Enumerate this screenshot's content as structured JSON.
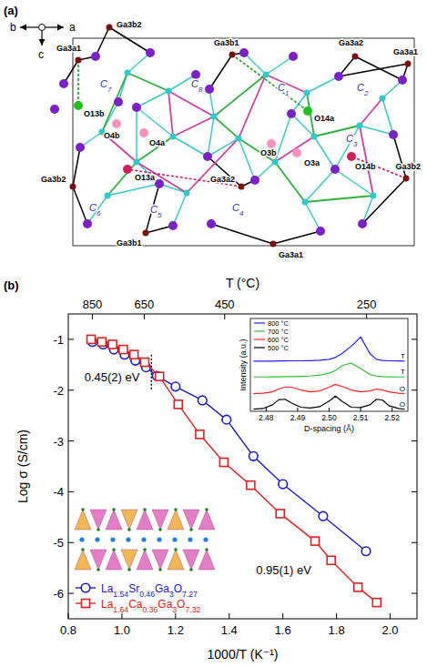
{
  "diagram": {
    "label": "(a)",
    "axes": {
      "b": "b",
      "a": "a",
      "c": "c"
    },
    "ga_atoms": [
      "Ga3b2",
      "Ga3a1",
      "Ga3b1",
      "Ga3a2",
      "Ga3a1",
      "Ga3b2",
      "Ga3b1",
      "Ga3a2",
      "Ga3a1",
      "Ga3b2"
    ],
    "cages": [
      "C7",
      "C8",
      "C1",
      "C2",
      "C3",
      "C4",
      "C5",
      "C6"
    ],
    "oxygens": [
      "O13b",
      "O4b",
      "O4a",
      "O13a",
      "O14a",
      "O3b",
      "O3a",
      "O14b"
    ]
  },
  "chart_data": [
    {
      "type": "line",
      "panel_label": "(b)",
      "xlabel": "1000/T (K⁻¹)",
      "ylabel": "Log σ (S/cm)",
      "x2label": "T (°C)",
      "xlim": [
        0.8,
        2.1
      ],
      "xticks": [
        0.8,
        {
          "value": 1,
          "label": "1.0"
        },
        1.2,
        1.4,
        1.6,
        1.8,
        {
          "value": 2,
          "label": "2.0"
        }
      ],
      "x2ticks": [
        {
          "value": 0.89,
          "label": "850"
        },
        {
          "value": 1.083,
          "label": "650"
        },
        {
          "value": 1.383,
          "label": "450"
        },
        {
          "value": 1.912,
          "label": "250"
        }
      ],
      "ylim": [
        -6.5,
        -0.5
      ],
      "yticks": [
        -6,
        -5,
        -4,
        -3,
        -2,
        -1
      ],
      "legend": "lower left",
      "vline": 1.11,
      "annotations": [
        "0.45(2) eV",
        "0.95(1) eV"
      ],
      "series": [
        {
          "name": "La1.54Sr0.46Ga3O7.27",
          "color": "#1a1ad0",
          "marker": "circle",
          "line_style": "solid",
          "x": [
            0.89,
            0.93,
            0.97,
            1.01,
            1.05,
            1.09,
            1.13,
            1.2,
            1.3,
            1.39,
            1.49,
            1.6,
            1.75,
            1.91
          ],
          "values": [
            -1.05,
            -1.1,
            -1.2,
            -1.3,
            -1.42,
            -1.55,
            -1.72,
            -1.93,
            -2.2,
            -2.58,
            -3.3,
            -3.85,
            -4.48,
            -5.17
          ]
        },
        {
          "name": "La1.64Ca0.36Ga3O7.32",
          "color": "#e02020",
          "marker": "square",
          "line_style": "solid",
          "x": [
            0.885,
            0.925,
            0.965,
            1.005,
            1.045,
            1.085,
            1.14,
            1.21,
            1.29,
            1.38,
            1.48,
            1.59,
            1.72,
            1.78,
            1.88,
            1.95
          ],
          "values": [
            -1.0,
            -1.05,
            -1.1,
            -1.2,
            -1.3,
            -1.45,
            -1.73,
            -2.28,
            -2.87,
            -3.42,
            -3.87,
            -4.43,
            -4.97,
            -5.35,
            -5.88,
            -6.18
          ]
        }
      ]
    },
    {
      "type": "line",
      "xlabel": "D-spacing (Å)",
      "ylabel": "Intensity (a.u.)",
      "xlim": [
        2.475,
        2.525
      ],
      "xticks": [
        2.48,
        2.49,
        {
          "value": 2.5,
          "label": "2.50"
        },
        2.51,
        2.52
      ],
      "ylim": [
        0,
        5
      ],
      "tick_labels": "x",
      "legend": "upper left",
      "x": [
        2.476,
        2.479,
        2.482,
        2.484,
        2.486,
        2.488,
        2.491,
        2.494,
        2.497,
        2.5,
        2.502,
        2.504,
        2.507,
        2.51,
        2.513,
        2.515,
        2.517,
        2.519,
        2.522,
        2.524
      ],
      "series": [
        {
          "name": "800 °C",
          "color": "#2020ff",
          "annotation": "T",
          "values": [
            2.7,
            2.7,
            2.7,
            2.71,
            2.71,
            2.72,
            2.72,
            2.73,
            2.75,
            2.8,
            2.9,
            3.1,
            3.5,
            4.0,
            3.1,
            2.8,
            2.74,
            2.72,
            2.71,
            2.7
          ]
        },
        {
          "name": "700 °C",
          "color": "#30c030",
          "annotation": "T",
          "values": [
            1.85,
            1.85,
            1.86,
            1.86,
            1.87,
            1.87,
            1.88,
            1.9,
            1.95,
            2.05,
            2.2,
            2.45,
            2.6,
            2.3,
            1.98,
            1.9,
            1.87,
            1.86,
            1.85,
            1.85
          ]
        },
        {
          "name": "600 °C",
          "color": "#ff2020",
          "annotation": "O",
          "values": [
            0.95,
            0.97,
            1.05,
            1.2,
            1.3,
            1.3,
            1.15,
            1.05,
            1.1,
            1.3,
            1.45,
            1.35,
            1.15,
            1.05,
            1.1,
            1.2,
            1.15,
            1.05,
            0.97,
            0.95
          ]
        },
        {
          "name": "500 °C",
          "color": "#000000",
          "annotation": "O",
          "values": [
            0.12,
            0.15,
            0.35,
            0.62,
            0.65,
            0.45,
            0.22,
            0.18,
            0.25,
            0.55,
            0.82,
            0.55,
            0.22,
            0.2,
            0.35,
            0.65,
            0.6,
            0.3,
            0.15,
            0.12
          ]
        }
      ]
    }
  ]
}
